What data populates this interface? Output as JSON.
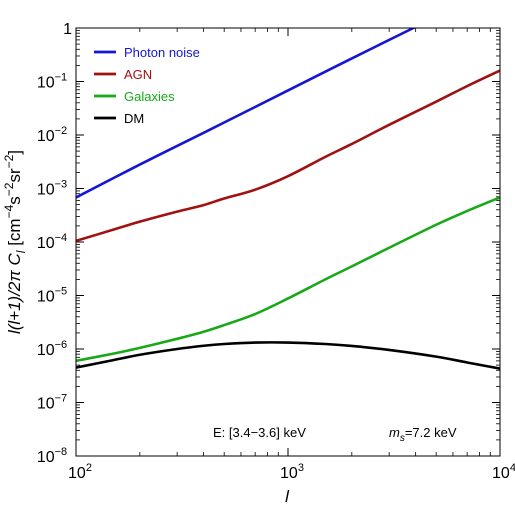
{
  "chart_data": {
    "type": "line",
    "xlabel": "l",
    "ylabel_html_parts": [
      "l(l+1)/2",
      "π",
      " ",
      "C",
      "l",
      "  [cm",
      "−4",
      "s",
      "−2",
      "sr",
      "−2",
      "]"
    ],
    "x_scale": "log",
    "y_scale": "log",
    "xlim": [
      100,
      10000
    ],
    "ylim": [
      1e-08,
      1
    ],
    "x_ticks": [
      {
        "value": 100,
        "base": "10",
        "exp": "2"
      },
      {
        "value": 1000,
        "base": "10",
        "exp": "3"
      },
      {
        "value": 10000,
        "base": "10",
        "exp": "4"
      }
    ],
    "y_ticks": [
      {
        "value": 1,
        "base": "1",
        "exp": ""
      },
      {
        "value": 0.1,
        "base": "10",
        "exp": "−1"
      },
      {
        "value": 0.01,
        "base": "10",
        "exp": "−2"
      },
      {
        "value": 0.001,
        "base": "10",
        "exp": "−3"
      },
      {
        "value": 0.0001,
        "base": "10",
        "exp": "−4"
      },
      {
        "value": 1e-05,
        "base": "10",
        "exp": "−5"
      },
      {
        "value": 1e-06,
        "base": "10",
        "exp": "−6"
      },
      {
        "value": 1e-07,
        "base": "10",
        "exp": "−7"
      },
      {
        "value": 1e-08,
        "base": "10",
        "exp": "−8"
      }
    ],
    "grid": false,
    "legend_position": "top-left",
    "series": [
      {
        "name": "Photon noise",
        "color": "#1515d6",
        "x": [
          100,
          200,
          400,
          1000,
          2000,
          4000
        ],
        "y": [
          0.00068,
          0.0028,
          0.011,
          0.068,
          0.27,
          1.05
        ]
      },
      {
        "name": "AGN",
        "color": "#a01212",
        "x": [
          100,
          150,
          200,
          300,
          400,
          500,
          700,
          1000,
          1500,
          2000,
          3000,
          5000,
          7000,
          10000
        ],
        "y": [
          0.000105,
          0.00017,
          0.00024,
          0.00037,
          0.00049,
          0.00065,
          0.00095,
          0.0017,
          0.0039,
          0.0068,
          0.0155,
          0.042,
          0.082,
          0.16
        ]
      },
      {
        "name": "Galaxies",
        "color": "#18a818",
        "x": [
          100,
          150,
          200,
          300,
          400,
          500,
          700,
          1000,
          1500,
          2000,
          3000,
          5000,
          7000,
          10000
        ],
        "y": [
          6e-07,
          8.2e-07,
          1.05e-06,
          1.55e-06,
          2.1e-06,
          2.8e-06,
          4.5e-06,
          8.8e-06,
          2e-05,
          3.5e-05,
          7.8e-05,
          0.00021,
          0.00038,
          0.00068
        ]
      },
      {
        "name": "DM",
        "color": "#000000",
        "x": [
          100,
          150,
          200,
          300,
          400,
          500,
          700,
          1000,
          1500,
          2000,
          3000,
          5000,
          7000,
          10000
        ],
        "y": [
          4.5e-07,
          6.2e-07,
          7.8e-07,
          1e-06,
          1.15e-06,
          1.24e-06,
          1.32e-06,
          1.32e-06,
          1.24e-06,
          1.14e-06,
          9.6e-07,
          7.2e-07,
          5.6e-07,
          4.3e-07
        ]
      }
    ],
    "annotations": [
      {
        "id": "energy",
        "text": "E:  [3.4−3.6] keV"
      },
      {
        "id": "mass",
        "prefix": "m",
        "sub": "s",
        "suffix": "=7.2 keV"
      }
    ]
  }
}
